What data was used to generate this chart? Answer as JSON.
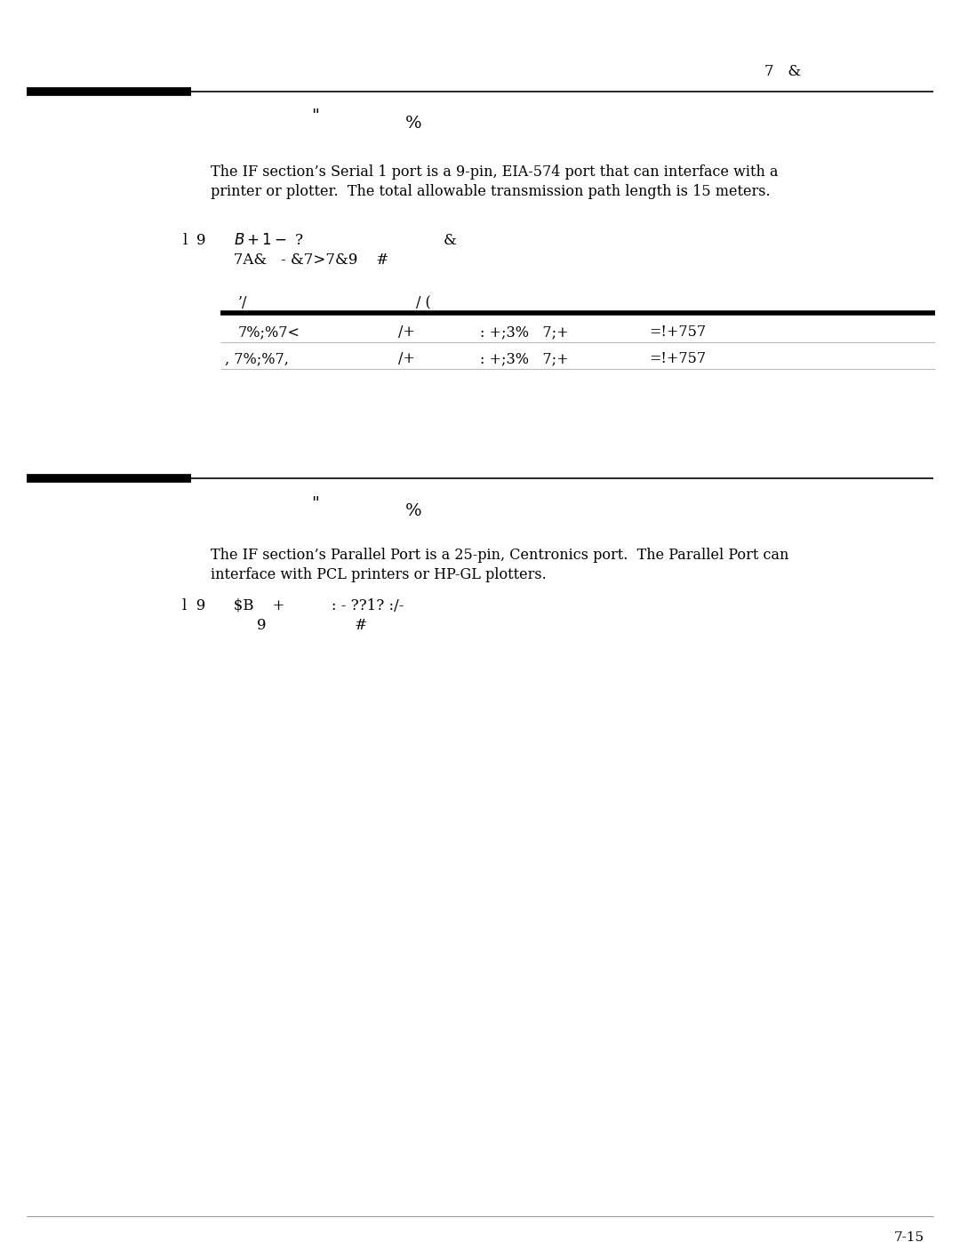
{
  "page_num": "7-15",
  "chapter_header": "7   &",
  "section1": {
    "header_text1": "\"",
    "header_text2": "%",
    "body_line1": "The IF section’s Serial 1 port is a 9-pin, EIA-574 port that can interface with a",
    "body_line2": "printer or plotter.  The total allowable transmission path length is 15 meters.",
    "note_line1": "l  9      $B    +  1-$ ?                              &",
    "note_line2": "           7A&   - &7>7&9    #",
    "table_header_col1": "’/",
    "table_header_col2": "/ (",
    "table_row1_col1": "7%;%7<",
    "table_row1_col2": "/+",
    "table_row1_col3": ": +;3%   7;+",
    "table_row1_col4": "=!+757",
    "table_row2_col1": ", 7%;%7,",
    "table_row2_col2": "/+",
    "table_row2_col3": ": +;3%   7;+",
    "table_row2_col4": "=!+757"
  },
  "section2": {
    "header_text1": "\"",
    "header_text2": "%",
    "body_line1": "The IF section’s Parallel Port is a 25-pin, Centronics port.  The Parallel Port can",
    "body_line2": "interface with PCL printers or HP-GL plotters.",
    "note_line1": "l  9      $B    +          : - ??1? :/­",
    "note_line2": "                9                   #"
  },
  "bg_color": "#ffffff",
  "text_color": "#000000",
  "font_size_body": 11.5,
  "font_size_header": 14,
  "font_size_note": 12,
  "font_size_table": 11.5,
  "font_size_chapter": 12,
  "font_size_page": 11
}
